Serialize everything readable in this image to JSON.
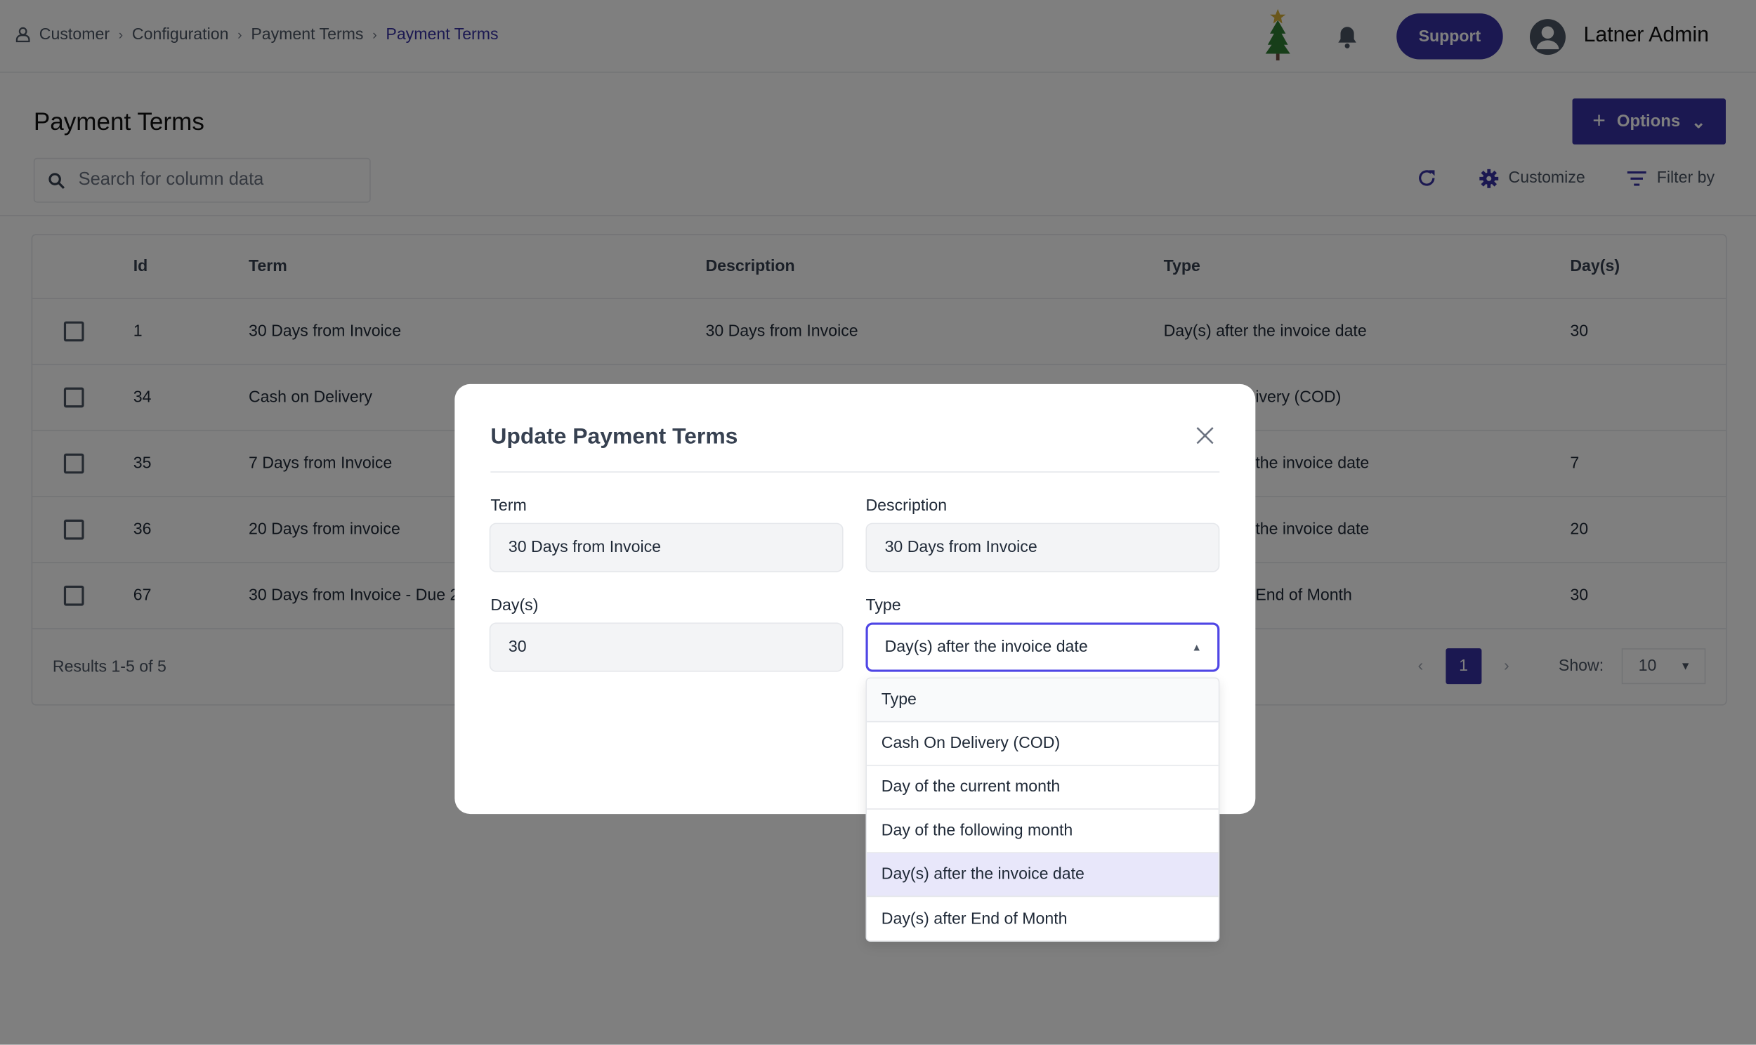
{
  "breadcrumb": [
    "Customer",
    "Configuration",
    "Payment Terms",
    "Payment Terms"
  ],
  "header": {
    "support": "Support",
    "user": "Latner Admin"
  },
  "page": {
    "title": "Payment Terms",
    "options": "Options",
    "search_placeholder": "Search for column data",
    "customize": "Customize",
    "filter": "Filter by"
  },
  "table": {
    "headers": [
      "Id",
      "Term",
      "Description",
      "Type",
      "Day(s)"
    ],
    "rows": [
      {
        "id": "1",
        "term": "30 Days from Invoice",
        "description": "30 Days from Invoice",
        "type": "Day(s) after the invoice date",
        "days": "30"
      },
      {
        "id": "34",
        "term": "Cash on Delivery",
        "description": "",
        "type": "ivery (COD)",
        "days": ""
      },
      {
        "id": "35",
        "term": "7 Days from Invoice",
        "description": "",
        "type": "the invoice date",
        "days": "7"
      },
      {
        "id": "36",
        "term": "20 Days from invoice",
        "description": "",
        "type": "the invoice date",
        "days": "20"
      },
      {
        "id": "67",
        "term": "30 Days from Invoice - Due 2",
        "description": "",
        "type": "End of Month",
        "days": "30"
      }
    ],
    "results": "Results 1-5 of 5",
    "page": "1",
    "show_label": "Show:",
    "show_value": "10"
  },
  "modal": {
    "title": "Update Payment Terms",
    "term_label": "Term",
    "term_value": "30 Days from Invoice",
    "desc_label": "Description",
    "desc_value": "30 Days from Invoice",
    "days_label": "Day(s)",
    "days_value": "30",
    "type_label": "Type",
    "type_value": "Day(s) after the invoice date",
    "type_options": [
      "Type",
      "Cash On Delivery (COD)",
      "Day of the current month",
      "Day of the following month",
      "Day(s) after the invoice date",
      "Day(s) after End of Month"
    ]
  },
  "colors": {
    "accent": "#3730a3",
    "focus": "#4f46e5",
    "selected_option": "#e8e7fa"
  }
}
